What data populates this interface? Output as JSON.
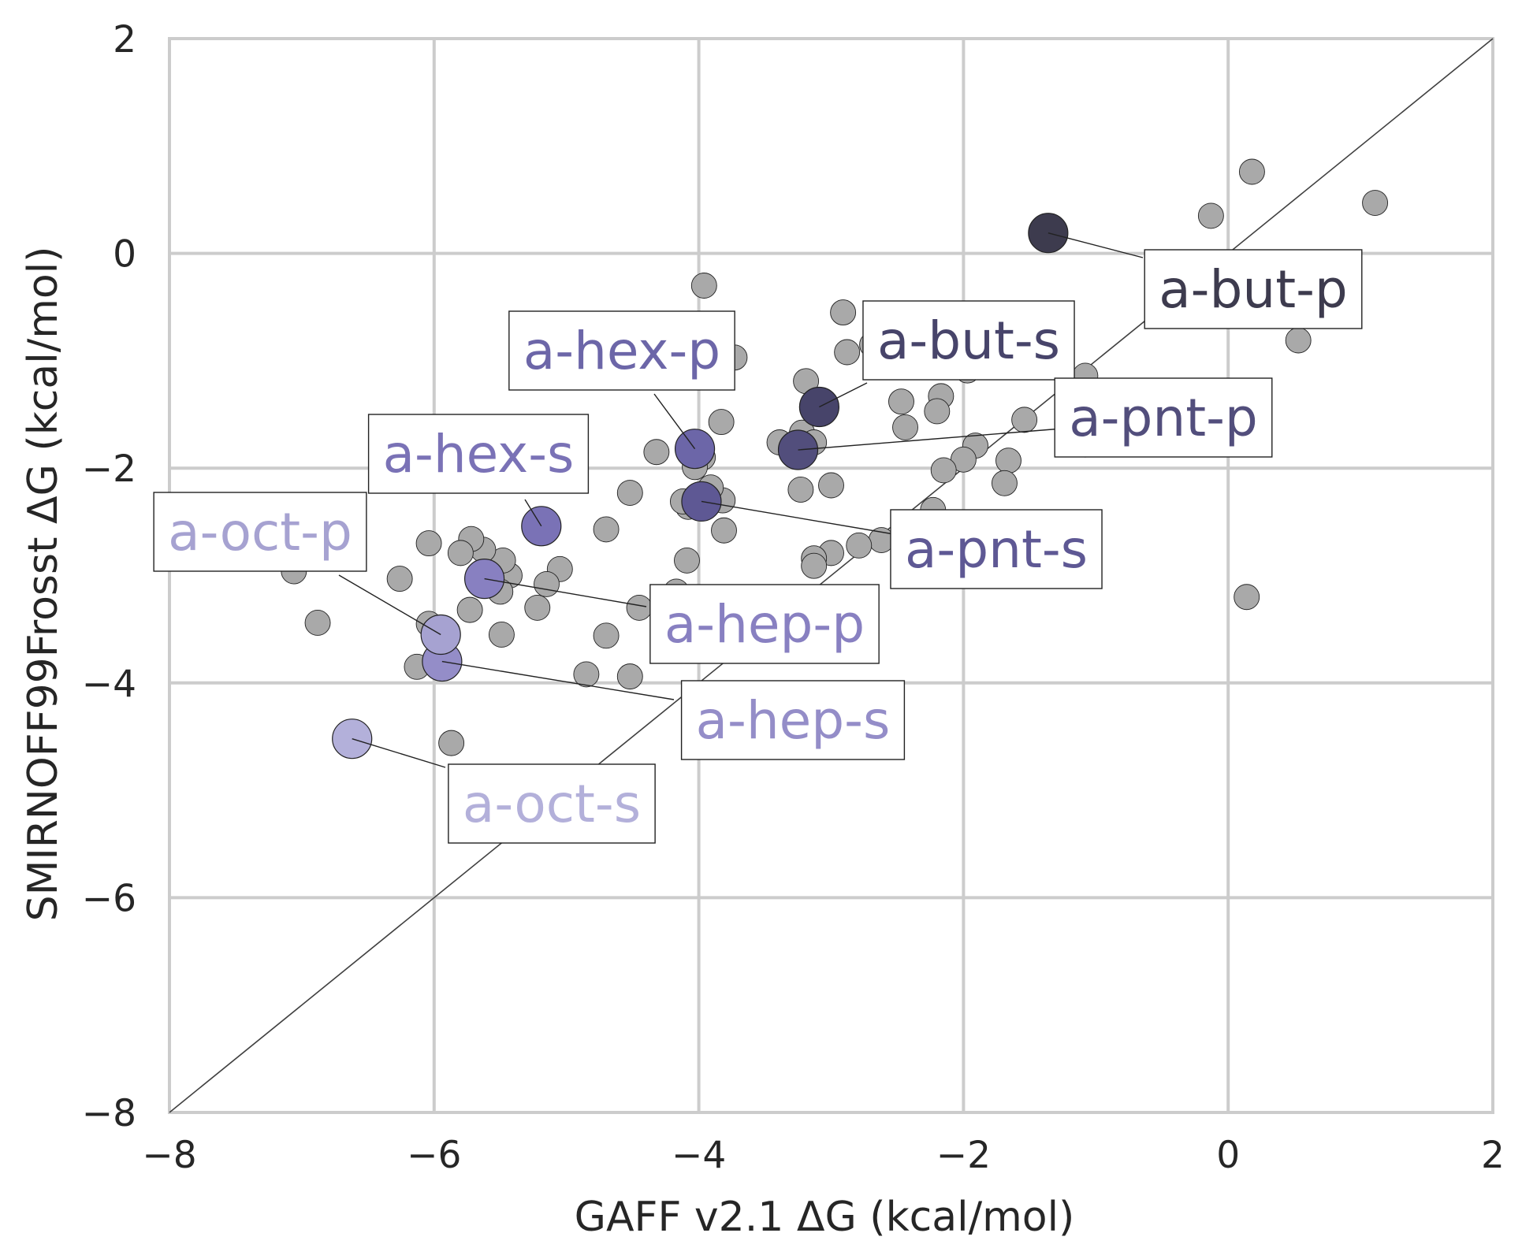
{
  "chart_data": {
    "type": "scatter",
    "title": "",
    "xlabel": "GAFF v2.1 ΔG (kcal/mol)",
    "ylabel": "SMIRNOFF99Frosst ΔG (kcal/mol)",
    "xlim": [
      -8,
      2
    ],
    "ylim": [
      -8,
      2
    ],
    "xticks": [
      -8,
      -6,
      -4,
      -2,
      0,
      2
    ],
    "yticks": [
      -8,
      -6,
      -4,
      -2,
      0,
      2
    ],
    "xtick_labels": [
      "−8",
      "−6",
      "−4",
      "−2",
      "0",
      "2"
    ],
    "ytick_labels": [
      "−8",
      "−6",
      "−4",
      "−2",
      "0",
      "2"
    ],
    "grid": true,
    "reference_line": "y = x",
    "point_color": "#a9a9a9",
    "points": [
      {
        "x": 0.18,
        "y": 0.76
      },
      {
        "x": -0.13,
        "y": 0.35
      },
      {
        "x": 1.11,
        "y": 0.47
      },
      {
        "x": 0.53,
        "y": -0.81
      },
      {
        "x": 0.14,
        "y": -3.2
      },
      {
        "x": -1.08,
        "y": -1.14
      },
      {
        "x": -1.08,
        "y": -1.78
      },
      {
        "x": -1.54,
        "y": -1.55
      },
      {
        "x": -1.66,
        "y": -1.93
      },
      {
        "x": -1.69,
        "y": -2.14
      },
      {
        "x": -1.91,
        "y": -1.79
      },
      {
        "x": -2.0,
        "y": -1.92
      },
      {
        "x": -1.97,
        "y": -1.09
      },
      {
        "x": -2.17,
        "y": -1.33
      },
      {
        "x": -2.2,
        "y": -1.47
      },
      {
        "x": -2.15,
        "y": -2.02
      },
      {
        "x": -2.23,
        "y": -2.39
      },
      {
        "x": -2.15,
        "y": -2.64
      },
      {
        "x": -2.47,
        "y": -1.38
      },
      {
        "x": -2.44,
        "y": -1.62
      },
      {
        "x": -2.91,
        "y": -0.55
      },
      {
        "x": -2.88,
        "y": -0.92
      },
      {
        "x": -2.69,
        "y": -0.85
      },
      {
        "x": -2.62,
        "y": -2.67
      },
      {
        "x": -2.79,
        "y": -2.72
      },
      {
        "x": -3.0,
        "y": -2.79
      },
      {
        "x": -3.13,
        "y": -2.84
      },
      {
        "x": -3.13,
        "y": -2.91
      },
      {
        "x": -3.0,
        "y": -2.16
      },
      {
        "x": -3.23,
        "y": -2.2
      },
      {
        "x": -3.22,
        "y": -1.67
      },
      {
        "x": -3.19,
        "y": -1.19
      },
      {
        "x": -3.13,
        "y": -1.76
      },
      {
        "x": -3.39,
        "y": -1.76
      },
      {
        "x": -3.39,
        "y": -4.13
      },
      {
        "x": -3.73,
        "y": -0.97
      },
      {
        "x": -3.83,
        "y": -1.57
      },
      {
        "x": -3.82,
        "y": -2.3
      },
      {
        "x": -3.81,
        "y": -2.58
      },
      {
        "x": -3.91,
        "y": -2.18
      },
      {
        "x": -3.96,
        "y": -0.3
      },
      {
        "x": -3.97,
        "y": -1.9
      },
      {
        "x": -4.03,
        "y": -1.99
      },
      {
        "x": -4.08,
        "y": -2.36
      },
      {
        "x": -4.12,
        "y": -2.31
      },
      {
        "x": -4.09,
        "y": -2.86
      },
      {
        "x": -4.17,
        "y": -3.15
      },
      {
        "x": -4.08,
        "y": -3.4
      },
      {
        "x": -4.32,
        "y": -1.85
      },
      {
        "x": -4.52,
        "y": -2.23
      },
      {
        "x": -4.45,
        "y": -3.3
      },
      {
        "x": -4.7,
        "y": -2.57
      },
      {
        "x": -4.7,
        "y": -3.56
      },
      {
        "x": -4.52,
        "y": -3.94
      },
      {
        "x": -4.85,
        "y": -3.92
      },
      {
        "x": -5.05,
        "y": -2.94
      },
      {
        "x": -5.15,
        "y": -3.08
      },
      {
        "x": -5.22,
        "y": -3.3
      },
      {
        "x": -5.43,
        "y": -3.0
      },
      {
        "x": -5.48,
        "y": -2.86
      },
      {
        "x": -5.5,
        "y": -3.15
      },
      {
        "x": -5.49,
        "y": -3.55
      },
      {
        "x": -5.63,
        "y": -2.76
      },
      {
        "x": -5.72,
        "y": -2.66
      },
      {
        "x": -5.73,
        "y": -3.32
      },
      {
        "x": -5.8,
        "y": -2.79
      },
      {
        "x": -5.9,
        "y": -3.52
      },
      {
        "x": -6.04,
        "y": -2.7
      },
      {
        "x": -6.04,
        "y": -3.45
      },
      {
        "x": -6.13,
        "y": -3.85
      },
      {
        "x": -6.26,
        "y": -3.03
      },
      {
        "x": -5.87,
        "y": -4.56
      },
      {
        "x": -6.88,
        "y": -3.44
      },
      {
        "x": -7.06,
        "y": -2.96
      }
    ],
    "highlighted": [
      {
        "label": "a-but-p",
        "x": -1.36,
        "y": 0.19,
        "color": "#3d3b4e"
      },
      {
        "label": "a-but-s",
        "x": -3.09,
        "y": -1.43,
        "color": "#47446a"
      },
      {
        "label": "a-pnt-p",
        "x": -3.25,
        "y": -1.83,
        "color": "#524e7c"
      },
      {
        "label": "a-pnt-s",
        "x": -3.98,
        "y": -2.31,
        "color": "#5e5894"
      },
      {
        "label": "a-hex-p",
        "x": -4.03,
        "y": -1.82,
        "color": "#6c66a8"
      },
      {
        "label": "a-hex-s",
        "x": -5.19,
        "y": -2.54,
        "color": "#7a72b6"
      },
      {
        "label": "a-hep-p",
        "x": -5.62,
        "y": -3.03,
        "color": "#8880c1"
      },
      {
        "label": "a-hep-s",
        "x": -5.94,
        "y": -3.8,
        "color": "#948dc8"
      },
      {
        "label": "a-oct-p",
        "x": -5.95,
        "y": -3.55,
        "color": "#a6a2d1"
      },
      {
        "label": "a-oct-s",
        "x": -6.62,
        "y": -4.52,
        "color": "#b3b0da"
      }
    ]
  }
}
